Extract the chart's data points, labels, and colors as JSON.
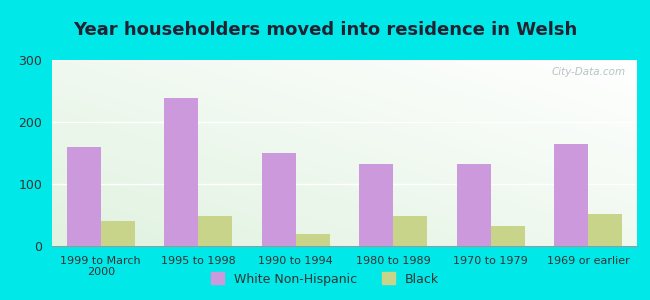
{
  "title": "Year householders moved into residence in Welsh",
  "categories": [
    "1999 to March\n2000",
    "1995 to 1998",
    "1990 to 1994",
    "1980 to 1989",
    "1970 to 1979",
    "1969 or earlier"
  ],
  "white_values": [
    160,
    238,
    150,
    132,
    132,
    165
  ],
  "black_values": [
    40,
    48,
    20,
    48,
    33,
    52
  ],
  "white_color": "#cc99dd",
  "black_color": "#c8d48a",
  "ylim": [
    0,
    300
  ],
  "yticks": [
    0,
    100,
    200,
    300
  ],
  "bg_color": "#00e8e8",
  "watermark": "City-Data.com",
  "legend_white": "White Non-Hispanic",
  "legend_black": "Black",
  "bar_width": 0.35,
  "title_fontsize": 13,
  "title_color": "#222233"
}
